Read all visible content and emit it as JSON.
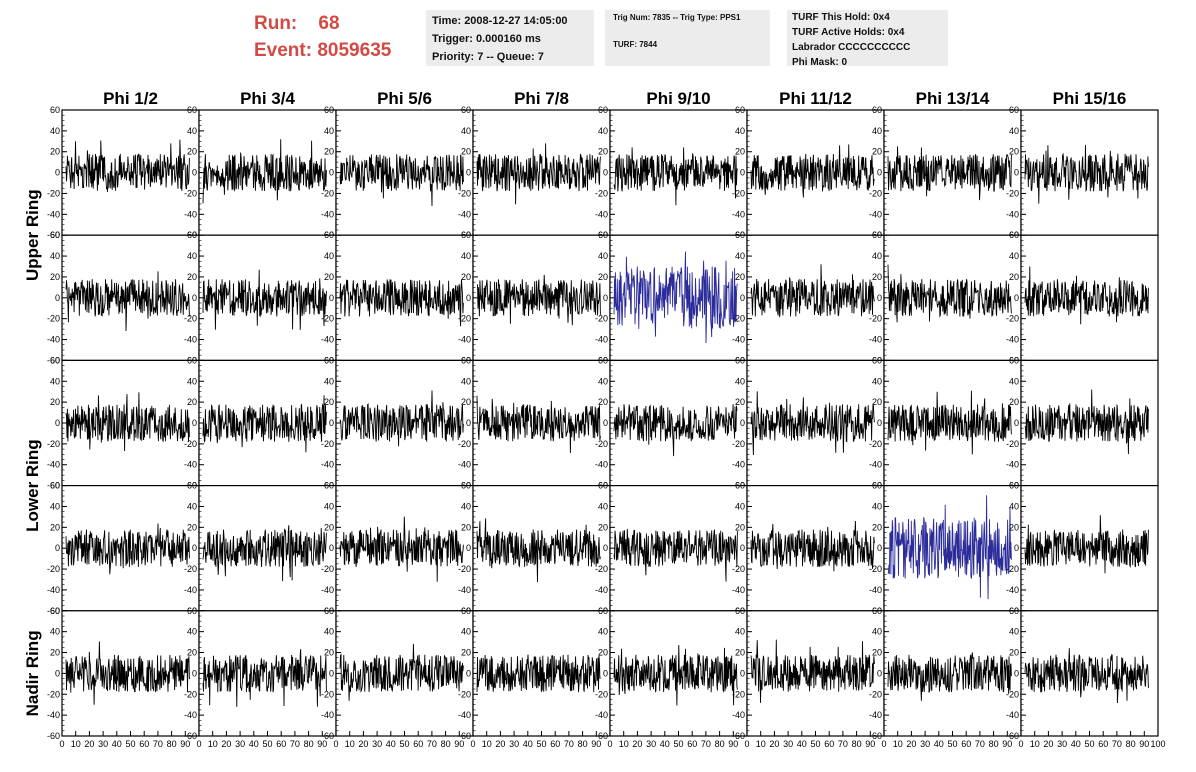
{
  "header": {
    "run_label": "Run:",
    "run_value": "68",
    "event_label": "Event:",
    "event_value": "8059635",
    "time": "Time: 2008-12-27 14:05:00",
    "trigger": "Trigger: 0.000160 ms",
    "priority": "Priority: 7 -- Queue: 7",
    "trig_num": "Trig Num: 7835 -- Trig Type: PPS1",
    "turf": "TURF: 7844",
    "turf_this_hold": "TURF This Hold: 0x4",
    "turf_active_holds": "TURF Active Holds: 0x4",
    "labrador": "Labrador CCCCCCCCCC",
    "phi_mask": "Phi Mask: 0"
  },
  "columns": [
    "Phi 1/2",
    "Phi 3/4",
    "Phi 5/6",
    "Phi 7/8",
    "Phi 9/10",
    "Phi 11/12",
    "Phi 13/14",
    "Phi 15/16"
  ],
  "rings": [
    "Upper Ring",
    "Lower Ring",
    "Nadir Ring"
  ],
  "colors": {
    "trace": "#000000",
    "triggered_trace": "#2b2b9a",
    "run_text": "#d24a43",
    "info_bg": "#ececec"
  },
  "chart_data": {
    "type": "line",
    "description": "8 x 5 grid of waveform traces (amplitude vs sample)",
    "xlim": [
      0,
      100
    ],
    "ylim": [
      -60,
      60
    ],
    "y_ticks": [
      -60,
      -40,
      -20,
      0,
      20,
      40,
      60
    ],
    "x_ticks": [
      0,
      10,
      20,
      30,
      40,
      50,
      60,
      70,
      80,
      90,
      100
    ],
    "x_tick_labels": [
      "0",
      "10",
      "20",
      "30",
      "40",
      "50",
      "60",
      "70",
      "80",
      "90",
      "100"
    ],
    "bottom_axis_text": "0 10203040506070809010 10203040506070809010 10203040506070809010 10203040506070809010 10203040506070809010 10203040506070809010 10203040506070809010 102030405060708090100",
    "samples_per_trace": 260,
    "typical_amplitude_range": [
      -30,
      30
    ],
    "highlighted_panels": [
      {
        "row": 2,
        "column": "Phi 9/10",
        "color": "#2b2b9a"
      },
      {
        "row": 4,
        "column": "Phi 13/14",
        "color": "#2b2b9a"
      }
    ],
    "row_groups": [
      {
        "ring": "Upper Ring",
        "rows": [
          1,
          2
        ]
      },
      {
        "ring": "Lower Ring",
        "rows": [
          3,
          4
        ]
      },
      {
        "ring": "Nadir Ring",
        "rows": [
          5
        ]
      }
    ]
  }
}
